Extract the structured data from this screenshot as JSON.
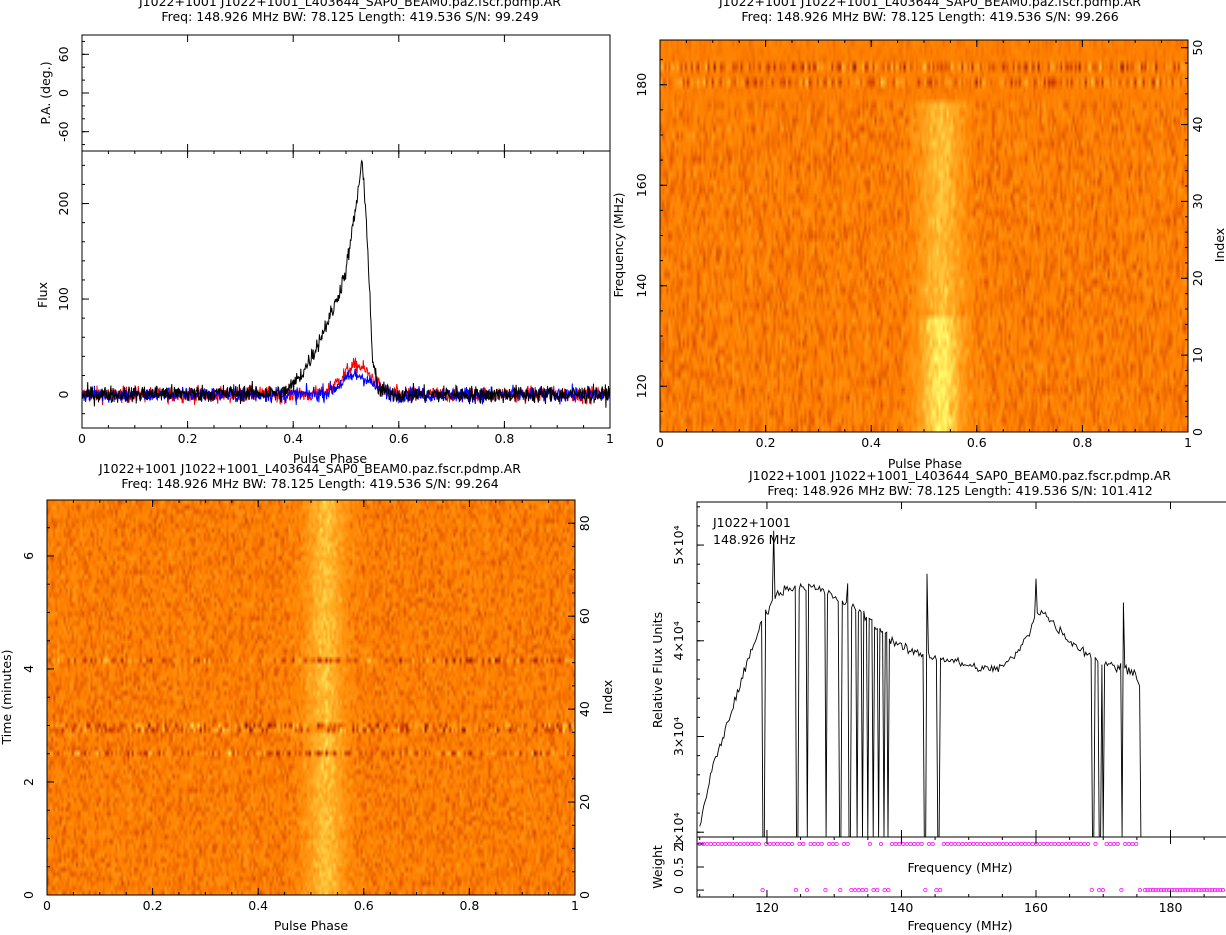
{
  "panels": {
    "profile": {
      "header_line1": "J1022+1001 J1022+1001_L403644_SAP0_BEAM0.paz.fscr.pdmp.AR",
      "header_line2": "Freq: 148.926 MHz BW: 78.125 Length: 419.536 S/N: 99.249"
    },
    "freq_phase": {
      "header_line1": "J1022+1001 J1022+1001_L403644_SAP0_BEAM0.paz.fscr.pdmp.AR",
      "header_line2": "Freq: 148.926 MHz BW: 78.125 Length: 419.536 S/N: 99.266"
    },
    "time_phase": {
      "header_line1": "J1022+1001 J1022+1001_L403644_SAP0_BEAM0.paz.fscr.pdmp.AR",
      "header_line2": "Freq: 148.926 MHz BW: 78.125 Length: 419.536 S/N: 99.264"
    },
    "bandpass": {
      "header_line1": "J1022+1001 J1022+1001_L403644_SAP0_BEAM0.paz.fscr.pdmp.AR",
      "header_line2": "Freq: 148.926 MHz BW: 78.125 Length: 419.536 S/N: 101.412",
      "annotation_line1": "J1022+1001",
      "annotation_line2": "148.926 MHz"
    }
  },
  "chart_data": [
    {
      "type": "line",
      "panel": "pa",
      "ylabel": "P.A. (deg.)",
      "xlim": [
        0,
        1
      ],
      "ylim": [
        -90,
        90
      ],
      "yticks": [
        "60",
        "0",
        "-60"
      ],
      "ytick_values": [
        60,
        0,
        -60
      ],
      "series": []
    },
    {
      "type": "line",
      "panel": "profile",
      "xlabel": "Pulse Phase",
      "ylabel": "Flux",
      "xlim": [
        0,
        1
      ],
      "ylim": [
        -35,
        255
      ],
      "xticks": [
        "0",
        "0.2",
        "0.4",
        "0.6",
        "0.8",
        "1"
      ],
      "xtick_values": [
        0,
        0.2,
        0.4,
        0.6,
        0.8,
        1
      ],
      "yticks": [
        "0",
        "100",
        "200"
      ],
      "ytick_values": [
        0,
        100,
        200
      ],
      "colors": {
        "total": "#000000",
        "linear": "#ff0000",
        "circular": "#0000ff"
      },
      "total_profile_shape": {
        "x": [
          0,
          0.38,
          0.4,
          0.42,
          0.44,
          0.46,
          0.48,
          0.5,
          0.52,
          0.53,
          0.54,
          0.55,
          0.56,
          0.6,
          1.0
        ],
        "y": [
          0,
          2,
          10,
          25,
          45,
          70,
          95,
          130,
          200,
          245,
          170,
          40,
          5,
          0,
          0
        ]
      },
      "noise_amplitude": 12,
      "linear_peak": 30,
      "circular_peak": 20
    },
    {
      "type": "heatmap",
      "panel": "freq_phase",
      "xlabel": "Pulse Phase",
      "ylabel": "Frequency (MHz)",
      "y2label": "Index",
      "xlim": [
        0,
        1
      ],
      "ylim": [
        110.9,
        188.9
      ],
      "y2lim": [
        0,
        51
      ],
      "xticks": [
        "0",
        "0.2",
        "0.4",
        "0.6",
        "0.8",
        "1"
      ],
      "xtick_values": [
        0,
        0.2,
        0.4,
        0.6,
        0.8,
        1
      ],
      "yticks": [
        "120",
        "140",
        "160",
        "180"
      ],
      "ytick_values": [
        120,
        140,
        160,
        180
      ],
      "y2ticks": [
        "0",
        "10",
        "20",
        "30",
        "40",
        "50"
      ],
      "y2tick_values": [
        0,
        10,
        20,
        30,
        40,
        50
      ],
      "pulse_phase_center": 0.53,
      "pulse_phase_width": 0.04,
      "colormap": [
        "#6b0000",
        "#c02c00",
        "#ff8000",
        "#ffa020",
        "#ffff60"
      ]
    },
    {
      "type": "heatmap",
      "panel": "time_phase",
      "xlabel": "Pulse Phase",
      "ylabel": "Time (minutes)",
      "y2label": "Index",
      "xlim": [
        0,
        1
      ],
      "ylim": [
        0,
        6.99
      ],
      "y2lim": [
        0,
        85
      ],
      "xticks": [
        "0",
        "0.2",
        "0.4",
        "0.6",
        "0.8",
        "1"
      ],
      "xtick_values": [
        0,
        0.2,
        0.4,
        0.6,
        0.8,
        1
      ],
      "yticks": [
        "0",
        "2",
        "4",
        "6"
      ],
      "ytick_values": [
        0,
        2,
        4,
        6
      ],
      "y2ticks": [
        "0",
        "20",
        "40",
        "60",
        "80"
      ],
      "y2tick_values": [
        0,
        20,
        40,
        60,
        80
      ],
      "pulse_phase_center": 0.525,
      "pulse_phase_width": 0.035,
      "bright_rows_minutes": [
        2.52,
        2.95,
        4.18
      ]
    },
    {
      "type": "line",
      "panel": "bandpass",
      "ylabel": "Relative Flux Units",
      "xlabel": "Frequency (MHz)",
      "xlim": [
        109.6,
        188.4
      ],
      "ylim": [
        19500,
        54500
      ],
      "yticks": [
        "2×10⁴",
        "3×10⁴",
        "4×10⁴",
        "5×10⁴"
      ],
      "ytick_values": [
        20000,
        30000,
        40000,
        50000
      ],
      "envelope": {
        "x": [
          110,
          112,
          114,
          116,
          118,
          119.5,
          121,
          123,
          125,
          127,
          129,
          131,
          133,
          135,
          137,
          139,
          141,
          143,
          145,
          147,
          149,
          151,
          153,
          155,
          157,
          159,
          160,
          161,
          163,
          165,
          167,
          169,
          171,
          173,
          174,
          175,
          175.6
        ],
        "y": [
          20500,
          27000,
          31000,
          35500,
          39500,
          42500,
          44500,
          45500,
          45700,
          45500,
          45000,
          44200,
          43500,
          42500,
          41000,
          39800,
          39000,
          38600,
          38300,
          38000,
          37600,
          37200,
          37000,
          37300,
          38500,
          40800,
          43000,
          43000,
          41500,
          40000,
          39000,
          38000,
          37400,
          37200,
          37000,
          36600,
          34500
        ]
      },
      "spikes_up": [
        {
          "x": 121.0,
          "y": 51500
        },
        {
          "x": 132.0,
          "y": 46000
        },
        {
          "x": 143.8,
          "y": 47000
        },
        {
          "x": 160.0,
          "y": 46500
        },
        {
          "x": 173.0,
          "y": 44000
        }
      ],
      "flagged_channels_mhz": [
        119.5,
        124.5,
        126.0,
        128.8,
        130.9,
        132.3,
        133.4,
        134.2,
        135.0,
        135.8,
        136.6,
        137.4,
        138.0,
        143.5,
        145.5,
        168.5,
        169.5,
        170.0,
        172.8,
        175.6
      ],
      "flagged_run_start_mhz": 176.2
    },
    {
      "type": "scatter",
      "panel": "weight",
      "xlabel": "Frequency (MHz)",
      "ylabel": "Weight",
      "xlim": [
        109.6,
        188.4
      ],
      "ylim": [
        -0.15,
        1.15
      ],
      "xticks": [
        "120",
        "140",
        "160",
        "180"
      ],
      "xtick_values": [
        120,
        140,
        160,
        180
      ],
      "yticks": [
        "0",
        "0.5",
        "1"
      ],
      "ytick_values": [
        0,
        0.5,
        1
      ],
      "marker_color": "#ff00ff",
      "weight_one_range_mhz": [
        110.0,
        176.0
      ],
      "weight_zero_range_mhz": [
        176.2,
        188.2
      ]
    }
  ]
}
